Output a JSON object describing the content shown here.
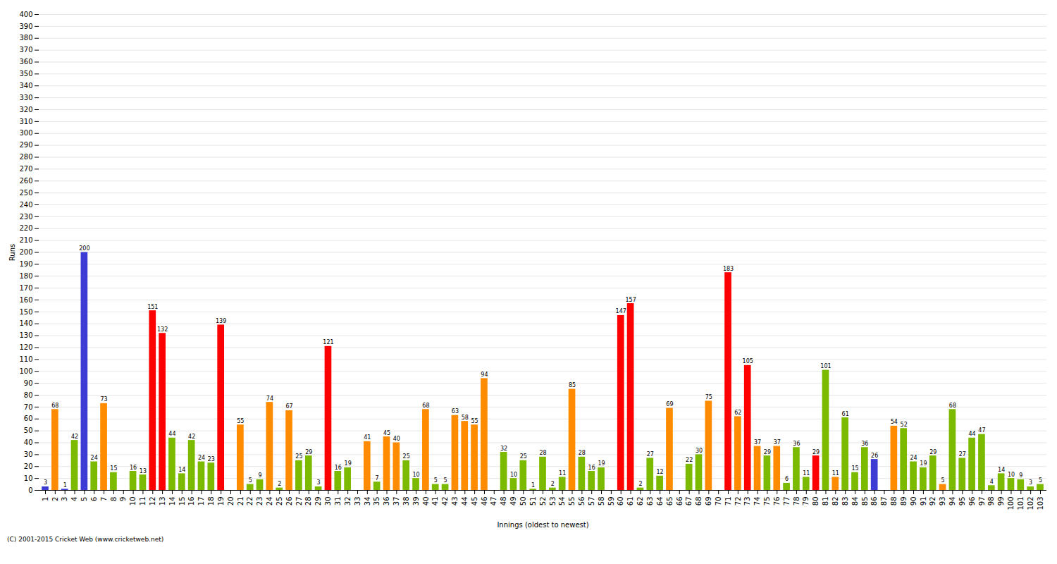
{
  "chart_data": {
    "type": "bar",
    "xlabel": "Innings (oldest to newest)",
    "ylabel": "Runs",
    "caption": "(C) 2001-2015 Cricket Web (www.cricketweb.net)",
    "ylim": [
      0,
      400
    ],
    "yticks": [
      0,
      10,
      20,
      30,
      40,
      50,
      60,
      70,
      80,
      90,
      100,
      110,
      120,
      130,
      140,
      150,
      160,
      170,
      180,
      190,
      200,
      210,
      220,
      230,
      240,
      250,
      260,
      270,
      280,
      290,
      300,
      310,
      320,
      330,
      340,
      350,
      360,
      370,
      380,
      390,
      400
    ],
    "grid": true,
    "data_labels": true,
    "categories": [
      1,
      2,
      3,
      4,
      5,
      6,
      7,
      8,
      9,
      10,
      11,
      12,
      13,
      14,
      15,
      16,
      17,
      18,
      19,
      20,
      21,
      22,
      23,
      24,
      25,
      26,
      27,
      28,
      29,
      30,
      31,
      32,
      33,
      34,
      35,
      36,
      37,
      38,
      39,
      40,
      41,
      42,
      43,
      44,
      45,
      46,
      47,
      48,
      49,
      50,
      51,
      52,
      53,
      54,
      55,
      56,
      57,
      58,
      59,
      60,
      61,
      62,
      63,
      64,
      65,
      66,
      67,
      68,
      69,
      70,
      71,
      72,
      73,
      74,
      75,
      76,
      77,
      78,
      79,
      80,
      81,
      82,
      83,
      84,
      85,
      86,
      87,
      88,
      89,
      90,
      91,
      92,
      93,
      94,
      95,
      96,
      97,
      98,
      99,
      100,
      101,
      102,
      103
    ],
    "values": [
      3,
      68,
      1,
      42,
      200,
      24,
      73,
      15,
      0,
      16,
      13,
      151,
      132,
      44,
      14,
      42,
      24,
      23,
      139,
      0,
      55,
      5,
      9,
      74,
      2,
      67,
      25,
      29,
      3,
      121,
      16,
      19,
      0,
      41,
      7,
      45,
      40,
      25,
      10,
      68,
      5,
      5,
      63,
      58,
      55,
      94,
      0,
      32,
      10,
      25,
      1,
      28,
      2,
      11,
      85,
      28,
      16,
      19,
      0,
      147,
      157,
      2,
      27,
      12,
      69,
      0,
      22,
      30,
      75,
      0,
      183,
      62,
      105,
      37,
      29,
      37,
      6,
      36,
      11,
      29,
      101,
      11,
      61,
      15,
      36,
      26,
      0,
      54,
      52,
      24,
      19,
      29,
      5,
      68,
      27,
      44,
      47,
      4,
      14,
      10,
      9,
      3,
      5
    ],
    "value_labels": [
      "3",
      "68",
      "1",
      "42",
      "200",
      "24",
      "73",
      "15",
      null,
      "16",
      "13",
      "151",
      "132",
      "44",
      "14",
      "42",
      "24",
      "23",
      "139",
      null,
      "55",
      "5",
      "9",
      "74",
      "2",
      "67",
      "25",
      "29",
      "3",
      "121",
      "16",
      "19",
      null,
      "41",
      "7",
      "45",
      "40",
      "25",
      "10",
      "68",
      "5",
      "5",
      "63",
      "58",
      "55",
      "94",
      null,
      "32",
      "10",
      "25",
      "1",
      "28",
      "2",
      "11",
      "85",
      "28",
      "16",
      "19",
      null,
      "147",
      "157",
      "2",
      "27",
      "12",
      "69",
      null,
      "22",
      "30",
      "75",
      null,
      "183",
      "62",
      "105",
      "37",
      "29",
      "37",
      "6",
      "36",
      "11",
      "29",
      "101",
      "11",
      "61",
      "15",
      "36",
      "26",
      null,
      "54",
      "52",
      "24",
      "19",
      "29",
      "5",
      "68",
      "27",
      "44",
      "47",
      "4",
      "14",
      "10",
      "9",
      "3",
      "5"
    ],
    "colors": [
      "#3c3cd4",
      "#ff8c00",
      "#3c3cd4",
      "#7cba00",
      "#3c3cd4",
      "#7cba00",
      "#ff8c00",
      "#7cba00",
      "#3c3cd4",
      "#7cba00",
      "#7cba00",
      "#ff0000",
      "#ff0000",
      "#7cba00",
      "#7cba00",
      "#7cba00",
      "#7cba00",
      "#7cba00",
      "#ff0000",
      "#3c3cd4",
      "#ff8c00",
      "#7cba00",
      "#7cba00",
      "#ff8c00",
      "#7cba00",
      "#ff8c00",
      "#7cba00",
      "#7cba00",
      "#7cba00",
      "#ff0000",
      "#7cba00",
      "#7cba00",
      "#3c3cd4",
      "#ff8c00",
      "#7cba00",
      "#ff8c00",
      "#ff8c00",
      "#7cba00",
      "#7cba00",
      "#ff8c00",
      "#7cba00",
      "#7cba00",
      "#ff8c00",
      "#ff8c00",
      "#ff8c00",
      "#ff8c00",
      "#3c3cd4",
      "#7cba00",
      "#7cba00",
      "#7cba00",
      "#7cba00",
      "#7cba00",
      "#7cba00",
      "#7cba00",
      "#ff8c00",
      "#7cba00",
      "#7cba00",
      "#7cba00",
      "#3c3cd4",
      "#ff0000",
      "#ff0000",
      "#7cba00",
      "#7cba00",
      "#7cba00",
      "#ff8c00",
      "#3c3cd4",
      "#7cba00",
      "#7cba00",
      "#ff8c00",
      "#3c3cd4",
      "#ff0000",
      "#ff8c00",
      "#ff0000",
      "#ff8c00",
      "#7cba00",
      "#ff8c00",
      "#7cba00",
      "#7cba00",
      "#7cba00",
      "#ff0000",
      "#7cba00",
      "#ff8c00",
      "#7cba00",
      "#7cba00",
      "#7cba00",
      "#3c3cd4",
      "#ff8c00",
      "#ff8c00",
      "#7cba00",
      "#7cba00",
      "#7cba00",
      "#7cba00",
      "#ff8c00",
      "#7cba00",
      "#7cba00",
      "#7cba00",
      "#7cba00",
      "#7cba00",
      "#7cba00",
      "#7cba00",
      "#7cba00",
      "#7cba00",
      "#7cba00"
    ]
  }
}
